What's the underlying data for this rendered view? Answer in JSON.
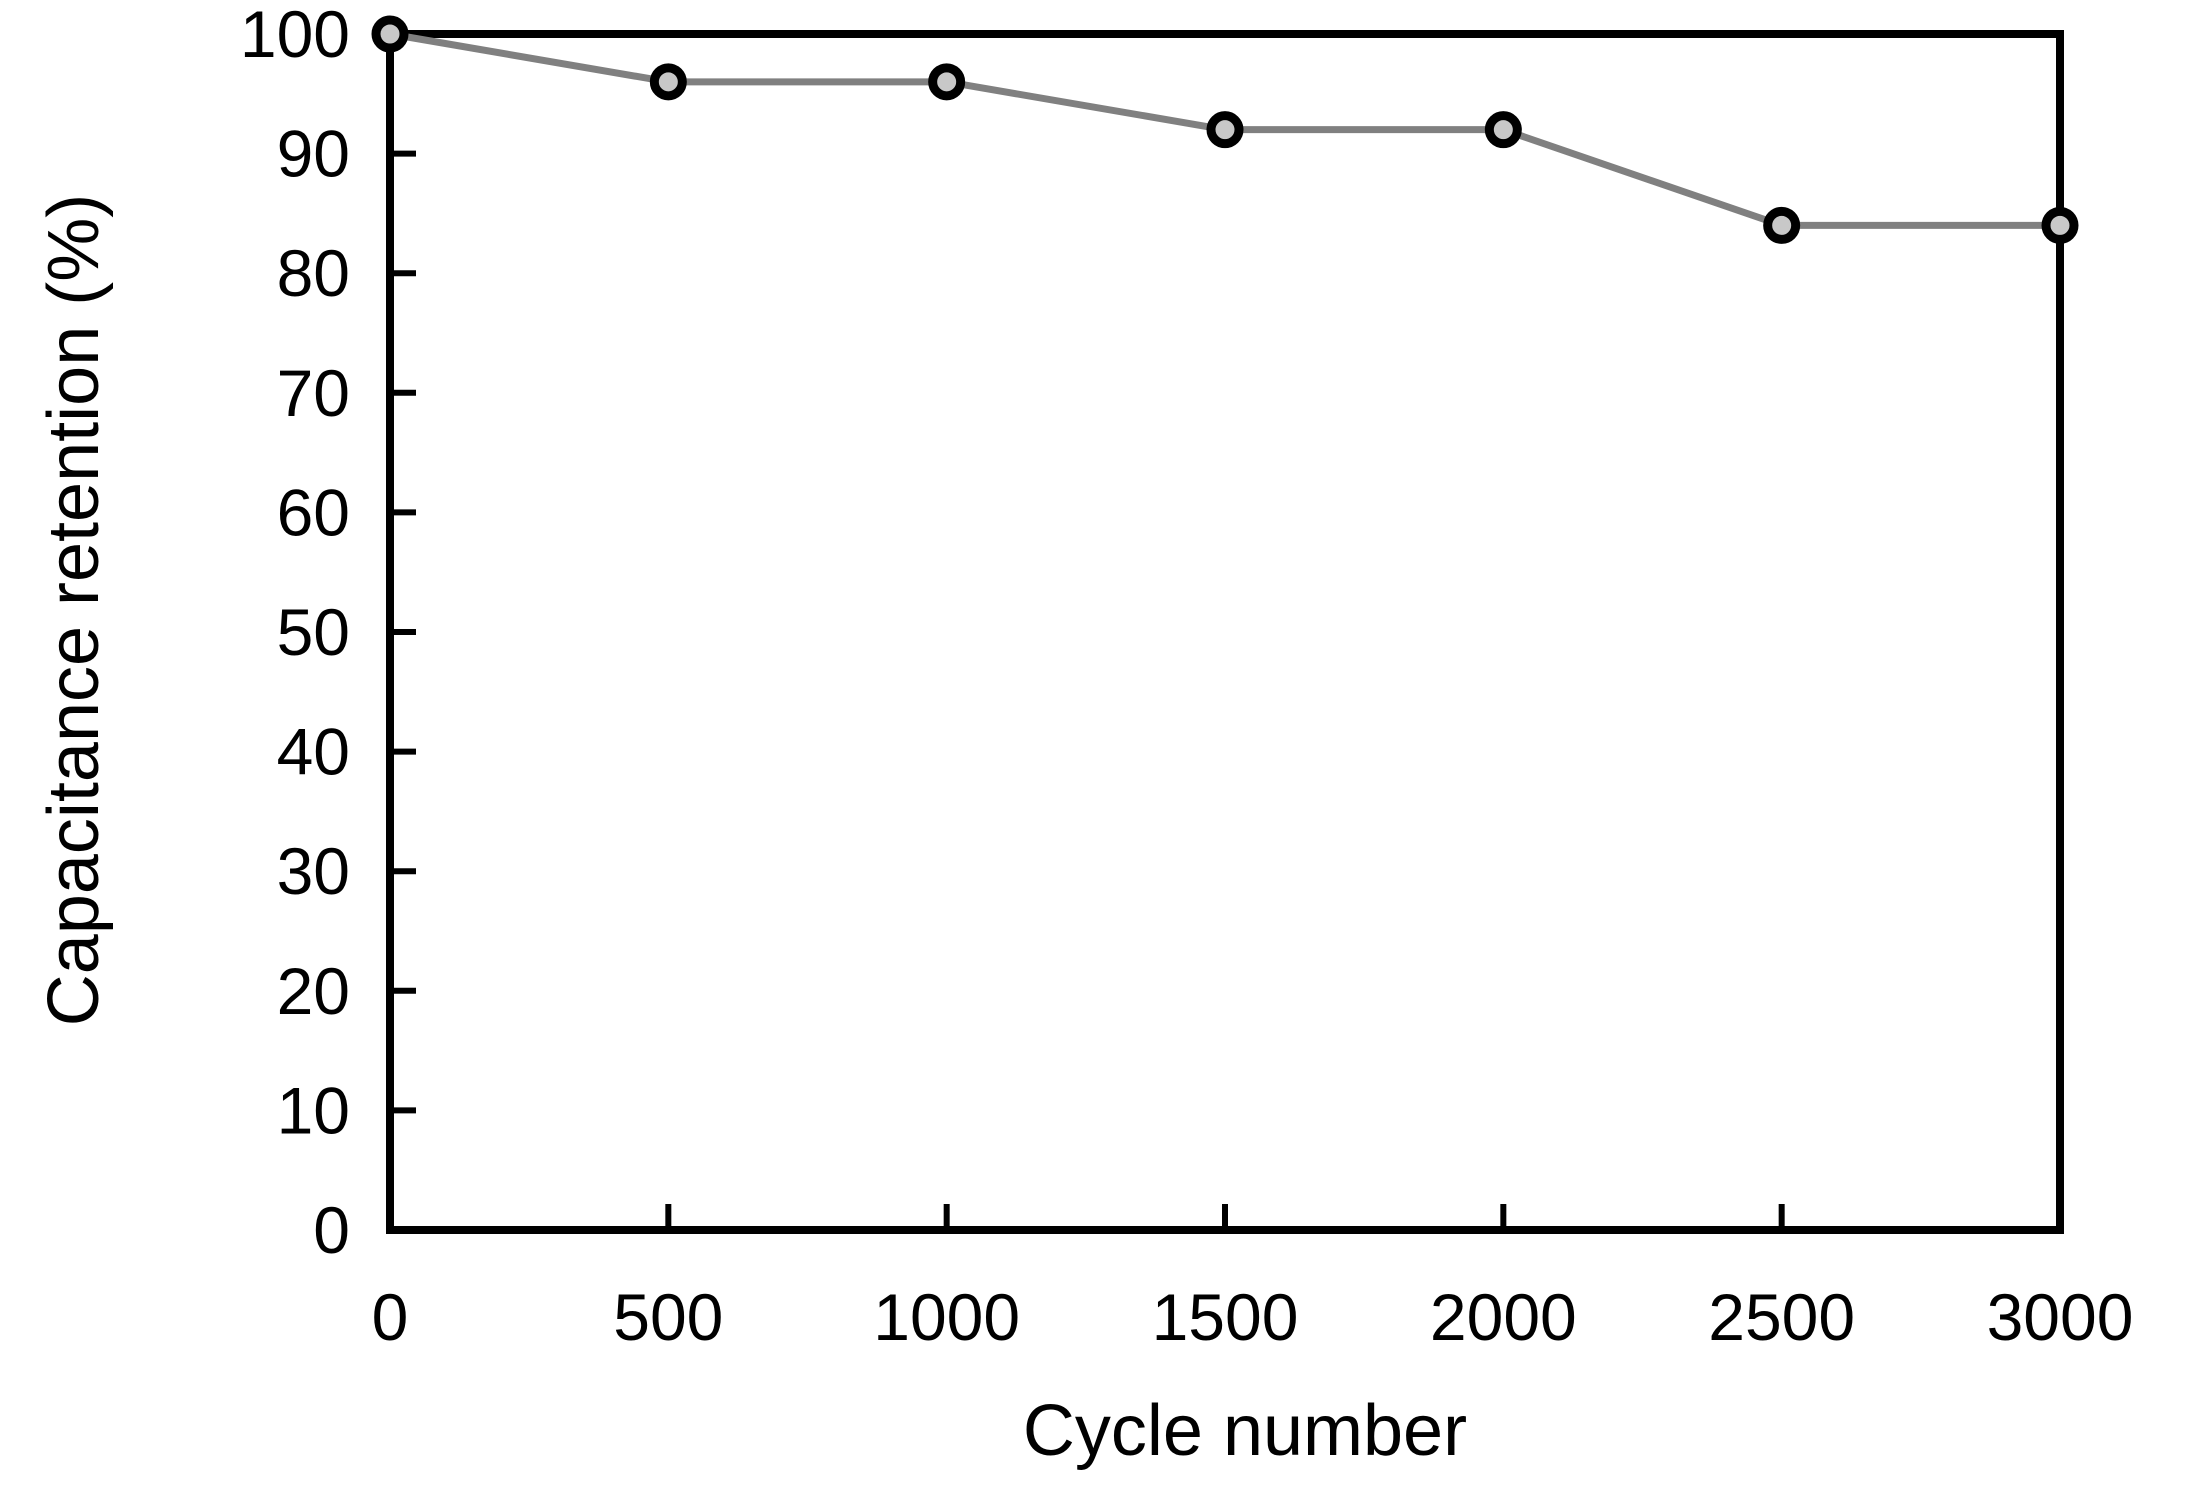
{
  "chart_data": {
    "type": "line",
    "title": "",
    "xlabel": "Cycle number",
    "ylabel": "Capacitance retention (%)",
    "xlim": [
      0,
      3000
    ],
    "ylim": [
      0,
      100
    ],
    "x_ticks": [
      0,
      500,
      1000,
      1500,
      2000,
      2500,
      3000
    ],
    "x_tick_labels": [
      "0",
      "500",
      "1000",
      "1500",
      "2000",
      "2500",
      "3000"
    ],
    "y_ticks": [
      0,
      10,
      20,
      30,
      40,
      50,
      60,
      70,
      80,
      90,
      100
    ],
    "y_tick_labels": [
      "0",
      "10",
      "20",
      "30",
      "40",
      "50",
      "60",
      "70",
      "80",
      "90",
      "100"
    ],
    "grid": false,
    "legend": "none",
    "series": [
      {
        "x": [
          0,
          500,
          1000,
          1500,
          2000,
          2500,
          3000
        ],
        "y": [
          100,
          96,
          96,
          92,
          92,
          84,
          84
        ],
        "line_color": "#808080",
        "marker": "circle",
        "marker_fill": "#c8c8c8",
        "marker_edge": "#000000"
      }
    ]
  }
}
